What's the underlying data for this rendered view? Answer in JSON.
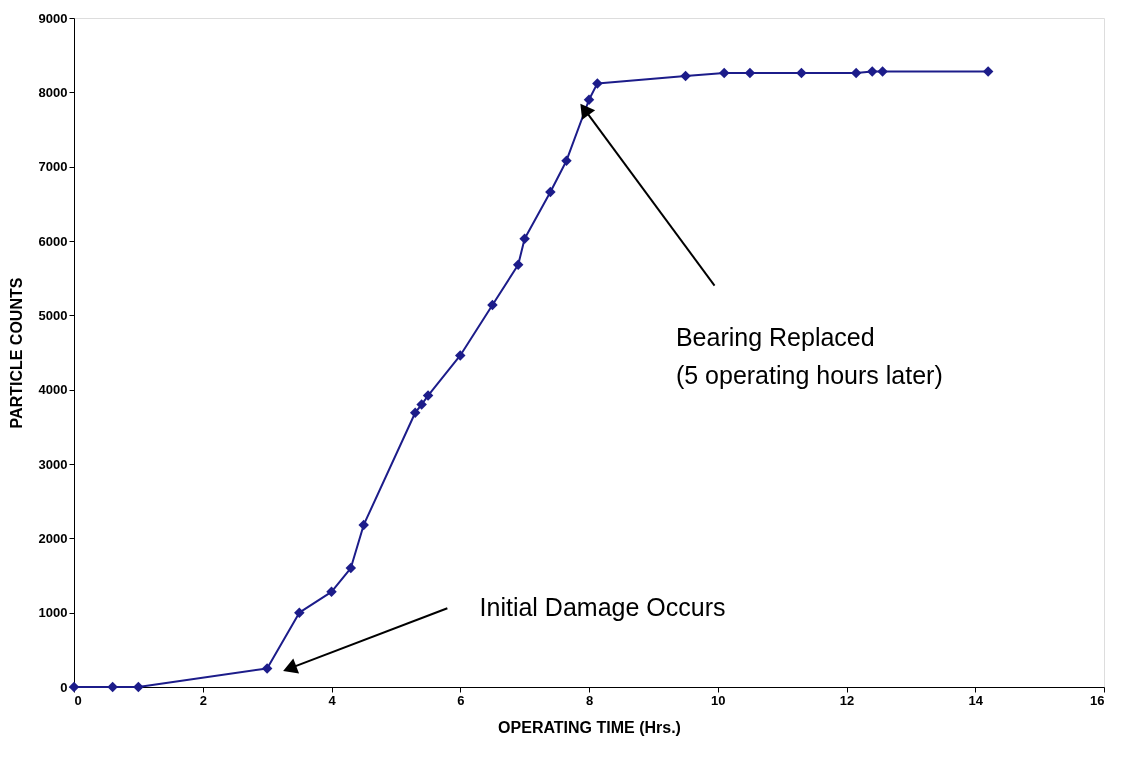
{
  "chart_data": {
    "type": "line",
    "xlabel": "OPERATING TIME (Hrs.)",
    "ylabel": "PARTICLE COUNTS",
    "x": [
      0,
      0.6,
      1.0,
      3.0,
      3.5,
      4.0,
      4.3,
      4.5,
      5.3,
      5.4,
      5.5,
      6.0,
      6.5,
      6.9,
      7.0,
      7.4,
      7.65,
      8.0,
      8.13,
      9.5,
      10.1,
      10.5,
      11.3,
      12.15,
      12.4,
      12.56,
      14.2
    ],
    "series": [
      {
        "color": "#1c1c8a",
        "values": [
          0,
          0,
          0,
          250,
          1000,
          1280,
          1600,
          2180,
          3690,
          3800,
          3920,
          4460,
          5140,
          5680,
          6030,
          6660,
          7080,
          7900,
          8120,
          8220,
          8260,
          8260,
          8260,
          8260,
          8280,
          8280,
          8280
        ]
      }
    ],
    "xlim": [
      0,
      16
    ],
    "xticks": [
      0,
      2,
      4,
      6,
      8,
      10,
      12,
      14,
      16
    ],
    "ylim": [
      0,
      9000
    ],
    "yticks": [
      0,
      1000,
      2000,
      3000,
      4000,
      5000,
      6000,
      7000,
      8000,
      9000
    ],
    "grid": false,
    "marker": "diamond",
    "line_style": "solid",
    "annotations": [
      "Initial Damage Occurs",
      "Bearing Replaced\n(5 operating hours later)"
    ]
  }
}
